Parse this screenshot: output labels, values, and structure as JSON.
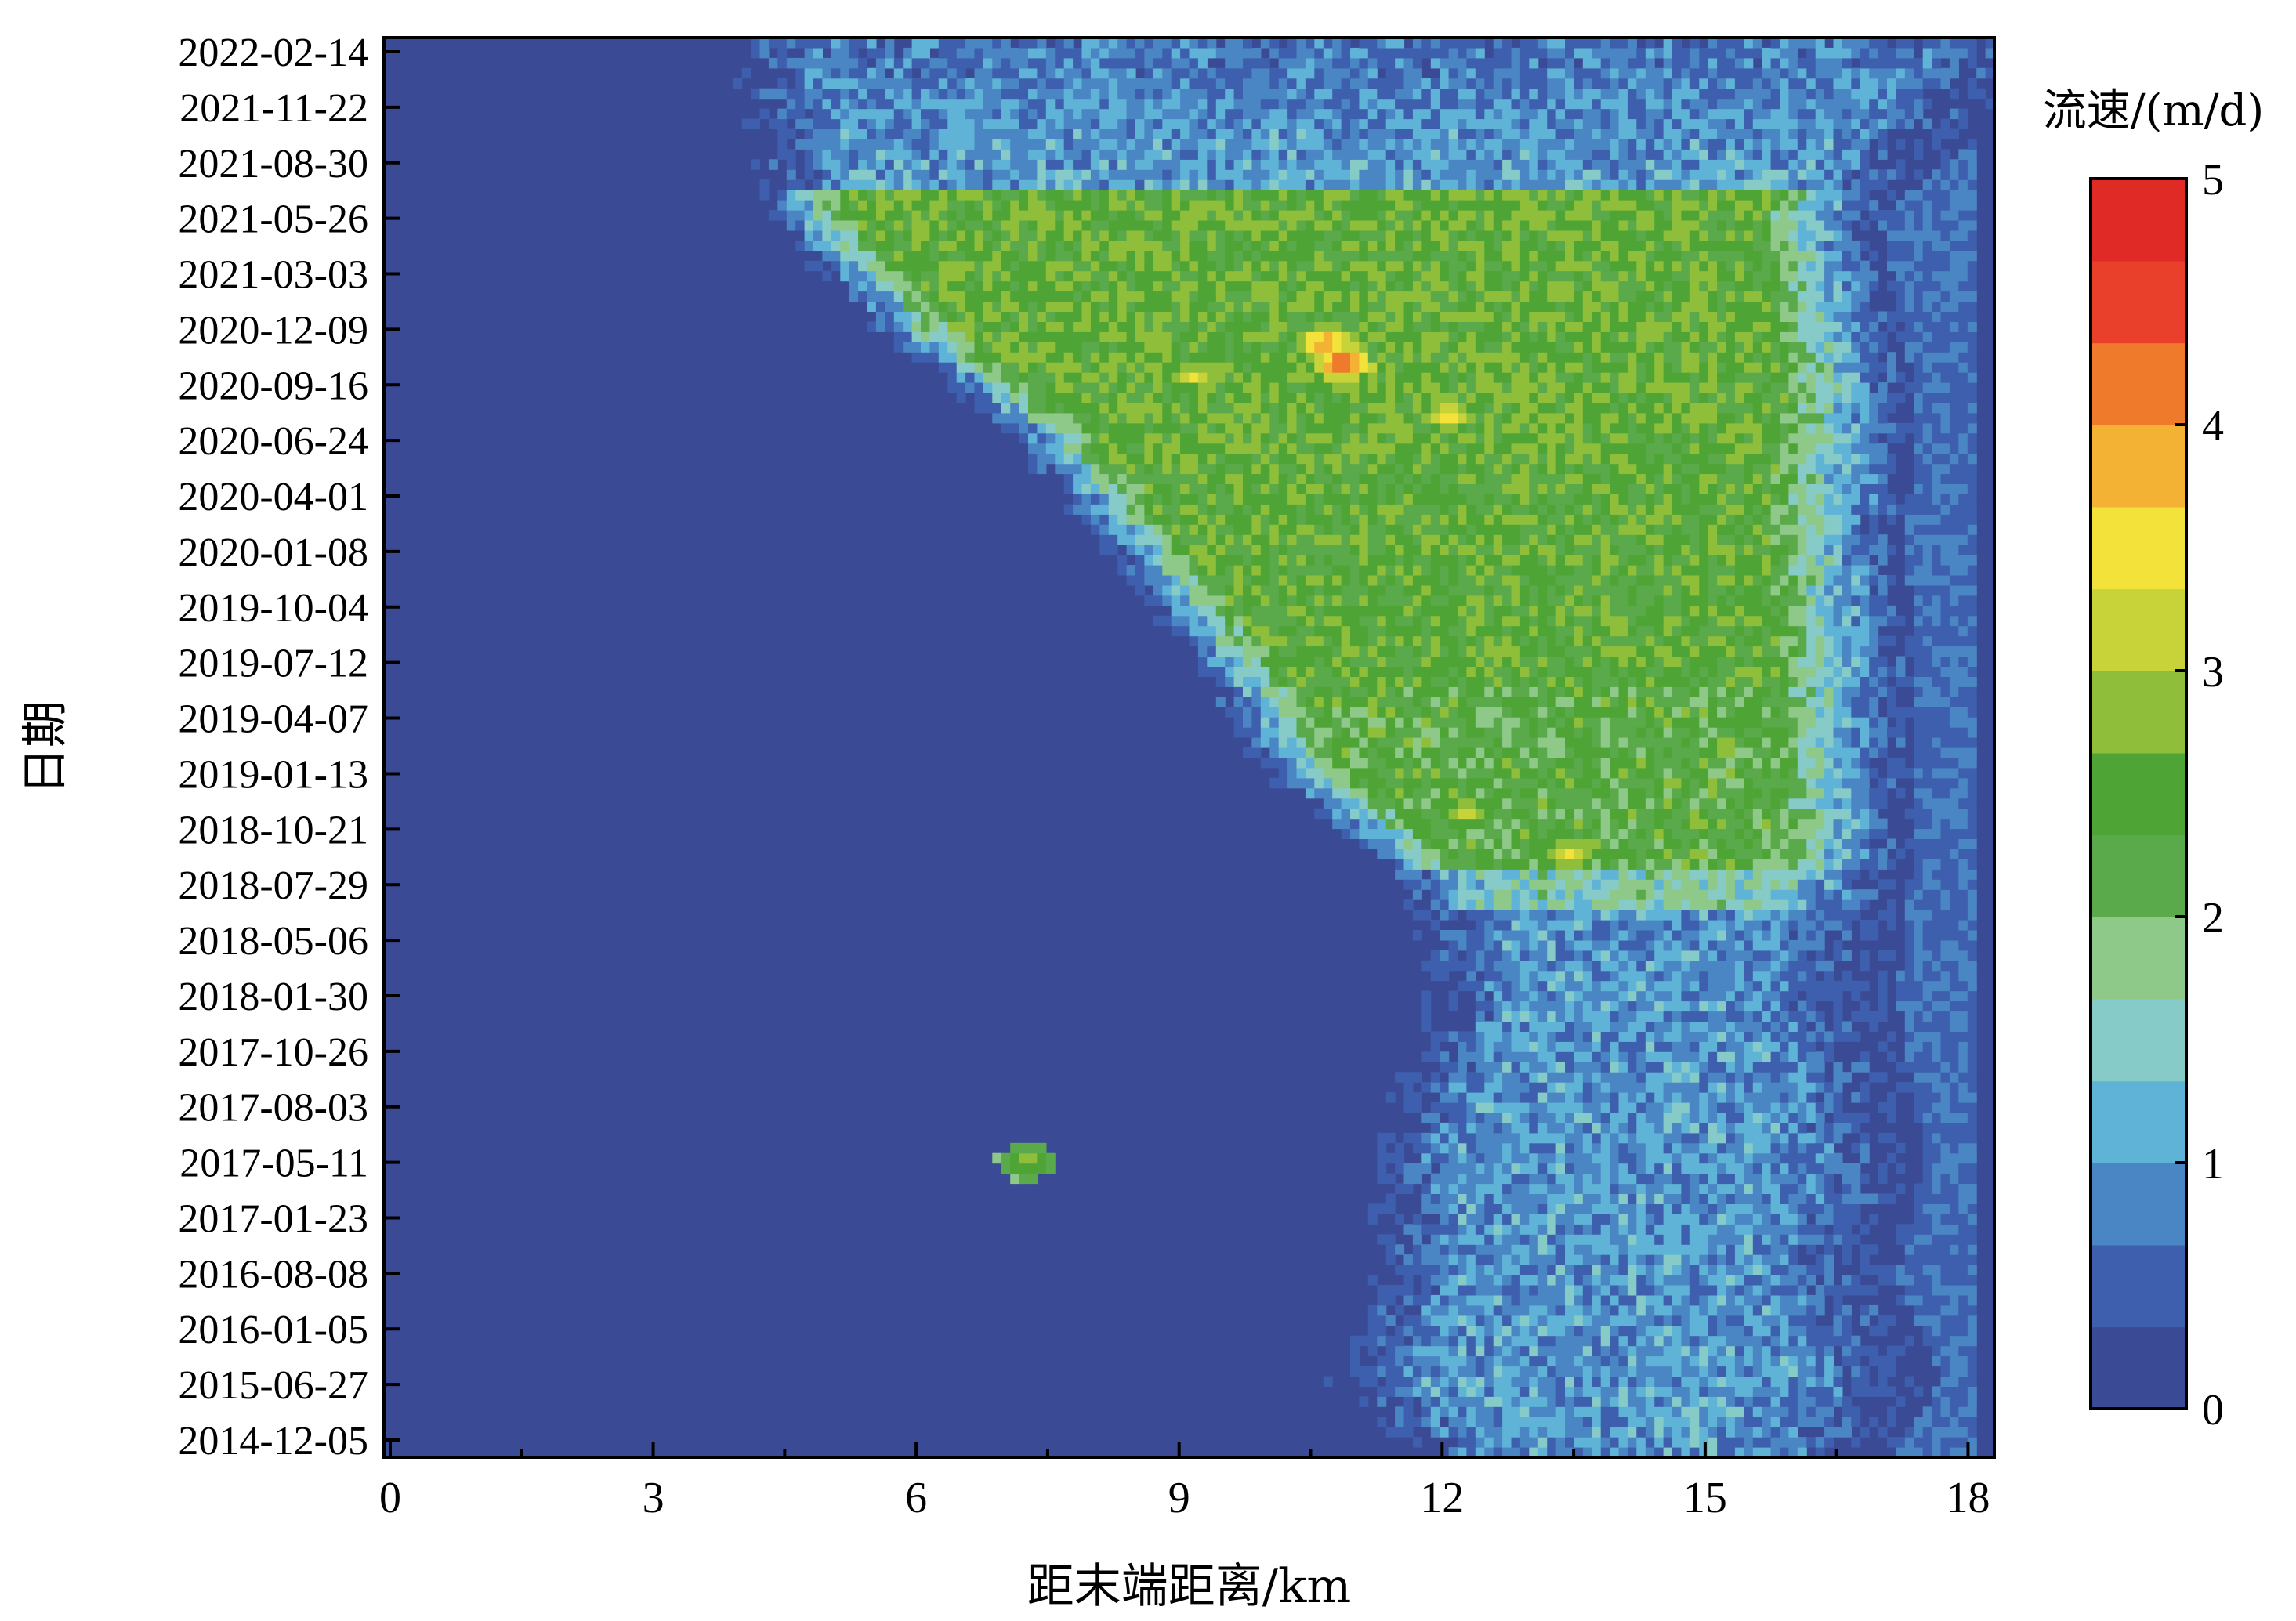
{
  "chart_data": {
    "type": "heatmap",
    "title": "",
    "xlabel": "距末端距离/km",
    "ylabel": "日期",
    "xlim": [
      0,
      18.3
    ],
    "x_ticks": [
      0,
      3,
      6,
      9,
      12,
      15,
      18
    ],
    "y_ticks": [
      "2014-12-05",
      "2015-06-27",
      "2016-01-05",
      "2016-08-08",
      "2017-01-23",
      "2017-05-11",
      "2017-08-03",
      "2017-10-26",
      "2018-01-30",
      "2018-05-06",
      "2018-07-29",
      "2018-10-21",
      "2019-01-13",
      "2019-04-07",
      "2019-07-12",
      "2019-10-04",
      "2020-01-08",
      "2020-04-01",
      "2020-06-24",
      "2020-09-16",
      "2020-12-09",
      "2021-03-03",
      "2021-05-26",
      "2021-08-30",
      "2021-11-22",
      "2022-02-14"
    ],
    "colorbar": {
      "title": "流速/(m/d)",
      "range": [
        0,
        5
      ],
      "ticks": [
        0,
        1,
        2,
        3,
        4,
        5
      ],
      "colors": [
        "#3b4a94",
        "#3d5fae",
        "#4b86c4",
        "#5fb3d6",
        "#86cbc8",
        "#8ec98a",
        "#5aa94a",
        "#4ea434",
        "#8fbf3a",
        "#c8d33a",
        "#f2e23a",
        "#f3b233",
        "#f07a2b",
        "#e8402a",
        "#e02a26"
      ]
    },
    "fast_zone_front_km": [
      {
        "date": "2022-02-14",
        "km": 4.3
      },
      {
        "date": "2021-05-26",
        "km": 4.8
      },
      {
        "date": "2020-12-09",
        "km": 6.0
      },
      {
        "date": "2020-06-24",
        "km": 7.6
      },
      {
        "date": "2020-01-08",
        "km": 8.6
      },
      {
        "date": "2019-07-12",
        "km": 9.6
      },
      {
        "date": "2019-01-13",
        "km": 10.4
      },
      {
        "date": "2018-07-29",
        "km": 12.0
      },
      {
        "date": "2018-01-30",
        "km": 12.3
      },
      {
        "date": "2017-05-11",
        "km": 11.6
      },
      {
        "date": "2016-08-08",
        "km": 11.7
      },
      {
        "date": "2015-06-27",
        "km": 11.2
      },
      {
        "date": "2014-12-05",
        "km": 12.0
      }
    ],
    "fast_zone_rear_km": [
      {
        "date": "2022-02-14",
        "km": 18.0
      },
      {
        "date": "2021-05-26",
        "km": 15.8
      },
      {
        "date": "2020-09-16",
        "km": 16.2
      },
      {
        "date": "2020-01-08",
        "km": 16.1
      },
      {
        "date": "2019-07-12",
        "km": 16.2
      },
      {
        "date": "2018-10-21",
        "km": 16.2
      },
      {
        "date": "2018-01-30",
        "km": 16.0
      },
      {
        "date": "2017-05-11",
        "km": 16.3
      },
      {
        "date": "2016-08-08",
        "km": 16.0
      },
      {
        "date": "2015-06-27",
        "km": 16.5
      },
      {
        "date": "2014-12-05",
        "km": 16.0
      }
    ],
    "velocity_peaks": [
      {
        "date": "2020-10-20",
        "km": 10.9,
        "value": 4.6
      },
      {
        "date": "2020-11-20",
        "km": 10.7,
        "value": 4.2
      },
      {
        "date": "2020-10-01",
        "km": 9.2,
        "value": 3.5
      },
      {
        "date": "2020-08-01",
        "km": 12.1,
        "value": 3.7
      },
      {
        "date": "2018-09-15",
        "km": 13.5,
        "value": 3.6
      },
      {
        "date": "2018-11-15",
        "km": 12.3,
        "value": 3.4
      },
      {
        "date": "2020-06-01",
        "km": 8.3,
        "value": 3.0
      },
      {
        "date": "2017-05-11",
        "km": 7.3,
        "value": 3.0
      }
    ]
  }
}
